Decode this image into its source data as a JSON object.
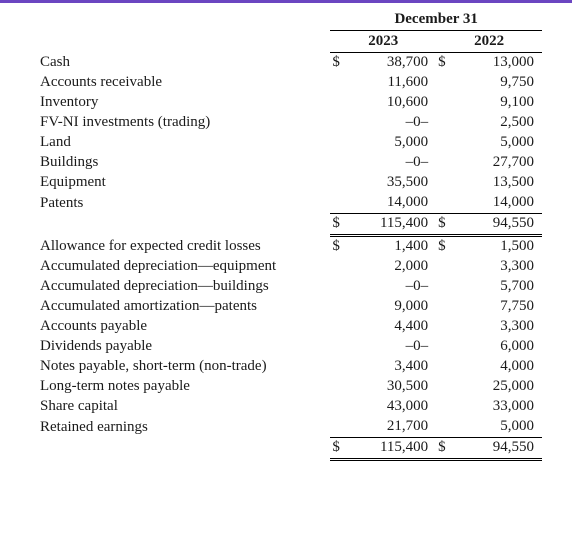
{
  "header": {
    "title": "December 31",
    "year1": "2023",
    "year2": "2022"
  },
  "section1": {
    "rows": [
      {
        "label": "Cash",
        "y1c": "$",
        "y1": "38,700",
        "y2c": "$",
        "y2": "13,000"
      },
      {
        "label": "Accounts receivable",
        "y1c": "",
        "y1": "11,600",
        "y2c": "",
        "y2": "9,750"
      },
      {
        "label": "Inventory",
        "y1c": "",
        "y1": "10,600",
        "y2c": "",
        "y2": "9,100"
      },
      {
        "label": "FV-NI investments (trading)",
        "y1c": "",
        "y1": "–0–",
        "y2c": "",
        "y2": "2,500"
      },
      {
        "label": "Land",
        "y1c": "",
        "y1": "5,000",
        "y2c": "",
        "y2": "5,000"
      },
      {
        "label": "Buildings",
        "y1c": "",
        "y1": "–0–",
        "y2c": "",
        "y2": "27,700"
      },
      {
        "label": "Equipment",
        "y1c": "",
        "y1": "35,500",
        "y2c": "",
        "y2": "13,500"
      },
      {
        "label": "Patents",
        "y1c": "",
        "y1": "14,000",
        "y2c": "",
        "y2": "14,000"
      }
    ],
    "total": {
      "y1c": "$",
      "y1": "115,400",
      "y2c": "$",
      "y2": "94,550"
    }
  },
  "section2": {
    "rows": [
      {
        "label": "Allowance for expected credit losses",
        "y1c": "$",
        "y1": "1,400",
        "y2c": "$",
        "y2": "1,500"
      },
      {
        "label": "Accumulated depreciation—equipment",
        "y1c": "",
        "y1": "2,000",
        "y2c": "",
        "y2": "3,300"
      },
      {
        "label": "Accumulated depreciation—buildings",
        "y1c": "",
        "y1": "–0–",
        "y2c": "",
        "y2": "5,700"
      },
      {
        "label": "Accumulated amortization—patents",
        "y1c": "",
        "y1": "9,000",
        "y2c": "",
        "y2": "7,750"
      },
      {
        "label": "Accounts payable",
        "y1c": "",
        "y1": "4,400",
        "y2c": "",
        "y2": "3,300"
      },
      {
        "label": "Dividends payable",
        "y1c": "",
        "y1": "–0–",
        "y2c": "",
        "y2": "6,000"
      },
      {
        "label": "Notes payable, short-term (non-trade)",
        "y1c": "",
        "y1": "3,400",
        "y2c": "",
        "y2": "4,000"
      },
      {
        "label": "Long-term notes payable",
        "y1c": "",
        "y1": "30,500",
        "y2c": "",
        "y2": "25,000"
      },
      {
        "label": "Share capital",
        "y1c": "",
        "y1": "43,000",
        "y2c": "",
        "y2": "33,000"
      },
      {
        "label": "Retained earnings",
        "y1c": "",
        "y1": "21,700",
        "y2c": "",
        "y2": "5,000"
      }
    ],
    "total": {
      "y1c": "$",
      "y1": "115,400",
      "y2c": "$",
      "y2": "94,550"
    }
  },
  "style": {
    "accent_bar_color": "#6b46c1",
    "text_color": "#1a1a1a",
    "font_family": "Georgia, serif",
    "font_size_pt": 11
  }
}
